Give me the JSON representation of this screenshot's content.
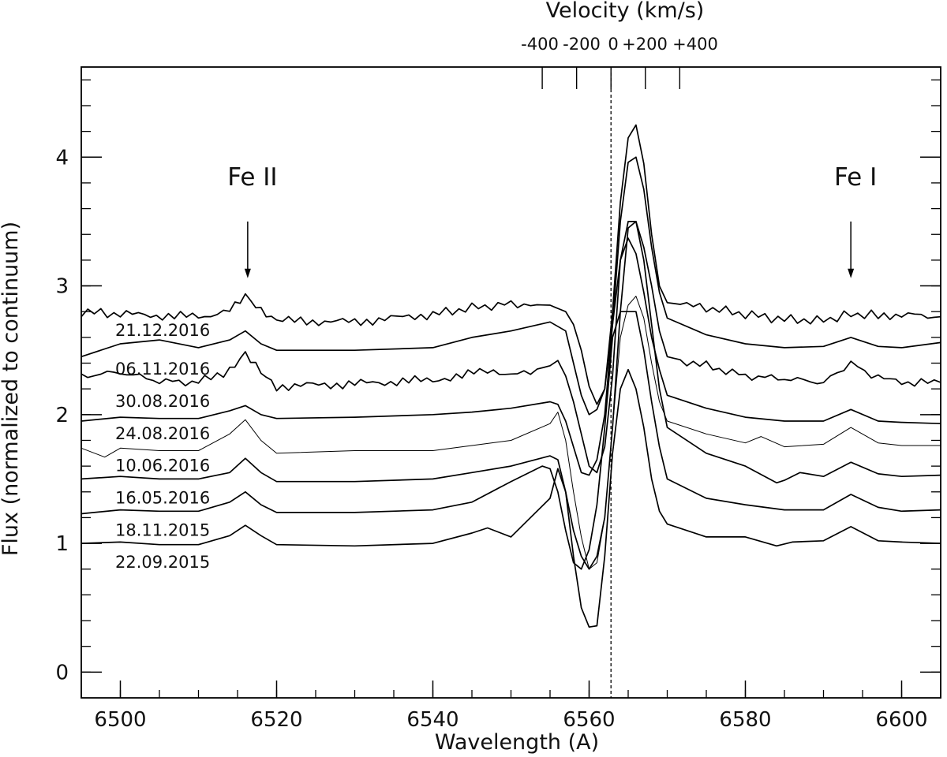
{
  "chart_data": {
    "type": "line",
    "title": "",
    "xlabel": "Wavelength (A)",
    "ylabel": "Flux (normalized to continuum)",
    "xlim": [
      6495,
      6605
    ],
    "ylim": [
      -0.2,
      4.7
    ],
    "x_ticks": [
      6500,
      6520,
      6540,
      6560,
      6580,
      6600
    ],
    "x_tick_labels": [
      "6500",
      "6520",
      "6540",
      "6560",
      "6580",
      "6600"
    ],
    "x_minor_step": 5,
    "y_ticks": [
      0,
      1,
      2,
      3,
      4
    ],
    "y_tick_labels": [
      "0",
      "1",
      "2",
      "3",
      "4"
    ],
    "y_minor_step": 0.2,
    "top_axis": {
      "title": "Velocity (km/s)",
      "rest_wavelength": 6562.8,
      "ticks": [
        {
          "label": "-400",
          "wavelength": 6554.0
        },
        {
          "label": "-200",
          "wavelength": 6558.4
        },
        {
          "label": "0",
          "wavelength": 6562.8
        },
        {
          "label": "+200",
          "wavelength": 6567.2
        },
        {
          "label": "+400",
          "wavelength": 6571.6
        }
      ]
    },
    "reference_line": {
      "wavelength": 6562.8,
      "style": "dashed"
    },
    "annotations": [
      {
        "text": "Fe II",
        "wavelength": 6516.3,
        "arrow_from": 3.5,
        "arrow_to": 3.06
      },
      {
        "text": "Fe I",
        "wavelength": 6593.5,
        "arrow_from": 3.5,
        "arrow_to": 3.06
      }
    ],
    "series": [
      {
        "name": "21.12.2016",
        "offset": 2.8,
        "noise": true,
        "thin": false,
        "x": [
          6495,
          6500,
          6510,
          6514,
          6516,
          6518,
          6520,
          6530,
          6540,
          6545,
          6550,
          6555,
          6557,
          6558,
          6559,
          6560,
          6561,
          6562,
          6563,
          6564,
          6565,
          6566,
          6567,
          6568,
          6569,
          6570,
          6575,
          6580,
          6585,
          6590,
          6593.5,
          6597,
          6600,
          6605
        ],
        "y": [
          2.8,
          2.78,
          2.76,
          2.8,
          2.91,
          2.8,
          2.73,
          2.72,
          2.78,
          2.83,
          2.86,
          2.85,
          2.8,
          2.7,
          2.5,
          2.22,
          2.08,
          2.2,
          2.8,
          3.65,
          4.15,
          4.25,
          3.95,
          3.4,
          3.0,
          2.87,
          2.83,
          2.78,
          2.74,
          2.73,
          2.78,
          2.77,
          2.78,
          2.76
        ]
      },
      {
        "name": "06.11.2016",
        "offset": 2.5,
        "noise": false,
        "thin": false,
        "x": [
          6495,
          6500,
          6505,
          6510,
          6514,
          6516,
          6518,
          6520,
          6530,
          6540,
          6545,
          6550,
          6555,
          6557,
          6558,
          6559,
          6560,
          6561,
          6562,
          6563,
          6564,
          6565,
          6566,
          6567,
          6568,
          6569,
          6570,
          6575,
          6580,
          6585,
          6590,
          6593.5,
          6597,
          6600,
          6605
        ],
        "y": [
          2.45,
          2.55,
          2.58,
          2.52,
          2.58,
          2.65,
          2.55,
          2.5,
          2.5,
          2.52,
          2.6,
          2.65,
          2.72,
          2.65,
          2.4,
          2.15,
          2.0,
          2.04,
          2.2,
          2.7,
          3.5,
          3.96,
          4.0,
          3.75,
          3.3,
          2.95,
          2.75,
          2.62,
          2.55,
          2.52,
          2.53,
          2.6,
          2.53,
          2.52,
          2.56
        ]
      },
      {
        "name": "30.08.2016",
        "offset": 2.25,
        "noise": true,
        "thin": false,
        "x": [
          6495,
          6500,
          6505,
          6510,
          6514,
          6516,
          6518,
          6520,
          6530,
          6540,
          6546,
          6547,
          6550,
          6555,
          6556,
          6557,
          6558,
          6559,
          6560,
          6561,
          6562,
          6563,
          6564,
          6565,
          6566,
          6567,
          6568,
          6569,
          6570,
          6575,
          6580,
          6585,
          6590,
          6593.5,
          6597,
          6600,
          6605
        ],
        "y": [
          2.3,
          2.33,
          2.26,
          2.25,
          2.35,
          2.49,
          2.35,
          2.22,
          2.24,
          2.27,
          2.33,
          2.36,
          2.3,
          2.38,
          2.42,
          2.3,
          2.1,
          1.85,
          1.6,
          1.55,
          1.75,
          2.3,
          3.2,
          3.5,
          3.5,
          3.3,
          3.0,
          2.65,
          2.45,
          2.38,
          2.3,
          2.28,
          2.25,
          2.4,
          2.28,
          2.25,
          2.25
        ]
      },
      {
        "name": "24.08.2016",
        "offset": 2.0,
        "noise": false,
        "thin": false,
        "x": [
          6495,
          6500,
          6505,
          6510,
          6514,
          6516,
          6518,
          6520,
          6530,
          6540,
          6545,
          6550,
          6555,
          6556,
          6557,
          6558,
          6559,
          6560,
          6561,
          6562,
          6563,
          6564,
          6565,
          6566,
          6567,
          6568,
          6569,
          6570,
          6575,
          6580,
          6585,
          6590,
          6593.5,
          6597,
          6600,
          6605
        ],
        "y": [
          1.95,
          1.98,
          1.97,
          1.97,
          2.03,
          2.07,
          2.0,
          1.97,
          1.98,
          2.0,
          2.02,
          2.05,
          2.1,
          2.08,
          1.95,
          1.75,
          1.55,
          1.53,
          1.65,
          2.0,
          2.7,
          3.2,
          3.37,
          3.25,
          2.95,
          2.6,
          2.35,
          2.15,
          2.05,
          1.98,
          1.95,
          1.95,
          2.04,
          1.95,
          1.94,
          1.93
        ]
      },
      {
        "name": "10.06.2016",
        "offset": 1.75,
        "noise": false,
        "thin": true,
        "x": [
          6495,
          6498,
          6500,
          6505,
          6510,
          6514,
          6516,
          6518,
          6520,
          6530,
          6540,
          6545,
          6550,
          6555,
          6556,
          6557,
          6558,
          6559,
          6560,
          6561,
          6562,
          6563,
          6564,
          6565,
          6566,
          6567,
          6568,
          6569,
          6570,
          6575,
          6580,
          6582,
          6585,
          6590,
          6593.5,
          6597,
          6600,
          6605
        ],
        "y": [
          1.74,
          1.67,
          1.74,
          1.72,
          1.72,
          1.85,
          1.96,
          1.8,
          1.7,
          1.72,
          1.72,
          1.76,
          1.8,
          1.93,
          2.02,
          1.8,
          1.4,
          1.05,
          0.8,
          0.85,
          1.2,
          1.9,
          2.6,
          2.85,
          2.92,
          2.75,
          2.4,
          2.1,
          1.95,
          1.85,
          1.78,
          1.83,
          1.75,
          1.77,
          1.9,
          1.78,
          1.76,
          1.76
        ]
      },
      {
        "name": "16.05.2016",
        "offset": 1.5,
        "noise": false,
        "thin": false,
        "x": [
          6495,
          6500,
          6505,
          6510,
          6514,
          6516,
          6518,
          6520,
          6530,
          6540,
          6545,
          6550,
          6555,
          6556,
          6557,
          6558,
          6559,
          6560,
          6561,
          6562,
          6563,
          6564,
          6565,
          6566,
          6567,
          6568,
          6569,
          6570,
          6575,
          6580,
          6584,
          6585,
          6587,
          6590,
          6593.5,
          6597,
          6600,
          6605
        ],
        "y": [
          1.5,
          1.52,
          1.5,
          1.5,
          1.55,
          1.66,
          1.55,
          1.48,
          1.48,
          1.5,
          1.55,
          1.6,
          1.68,
          1.65,
          1.4,
          1.1,
          0.9,
          0.8,
          0.9,
          1.2,
          1.9,
          2.8,
          3.45,
          3.5,
          3.2,
          2.7,
          2.2,
          1.9,
          1.7,
          1.6,
          1.47,
          1.49,
          1.55,
          1.52,
          1.63,
          1.54,
          1.52,
          1.53
        ]
      },
      {
        "name": "18.11.2015",
        "offset": 1.25,
        "noise": false,
        "thin": false,
        "x": [
          6495,
          6500,
          6505,
          6510,
          6514,
          6516,
          6518,
          6520,
          6530,
          6540,
          6545,
          6550,
          6554,
          6555,
          6556,
          6557,
          6558,
          6559,
          6560,
          6561,
          6562,
          6563,
          6564,
          6565,
          6566,
          6567,
          6568,
          6569,
          6570,
          6575,
          6580,
          6585,
          6590,
          6593.5,
          6597,
          6600,
          6605
        ],
        "y": [
          1.23,
          1.26,
          1.25,
          1.25,
          1.32,
          1.4,
          1.3,
          1.24,
          1.24,
          1.26,
          1.32,
          1.48,
          1.6,
          1.58,
          1.4,
          1.1,
          0.85,
          0.8,
          0.95,
          1.3,
          1.9,
          2.6,
          2.8,
          2.8,
          2.8,
          2.5,
          2.1,
          1.75,
          1.5,
          1.35,
          1.3,
          1.26,
          1.26,
          1.38,
          1.28,
          1.25,
          1.26
        ]
      },
      {
        "name": "22.09.2015",
        "offset": 1.0,
        "noise": false,
        "thin": false,
        "x": [
          6495,
          6500,
          6505,
          6510,
          6514,
          6516,
          6518,
          6520,
          6530,
          6540,
          6545,
          6547,
          6550,
          6555,
          6556,
          6557,
          6558,
          6559,
          6560,
          6561,
          6562,
          6563,
          6564,
          6565,
          6566,
          6567,
          6568,
          6569,
          6570,
          6575,
          6580,
          6584,
          6586,
          6590,
          6593.5,
          6597,
          6600,
          6605
        ],
        "y": [
          1.0,
          1.01,
          0.99,
          0.99,
          1.06,
          1.14,
          1.06,
          0.99,
          0.98,
          1.0,
          1.08,
          1.12,
          1.05,
          1.35,
          1.58,
          1.4,
          0.9,
          0.5,
          0.35,
          0.36,
          0.9,
          1.7,
          2.2,
          2.35,
          2.2,
          1.9,
          1.5,
          1.25,
          1.15,
          1.05,
          1.05,
          0.98,
          1.01,
          1.02,
          1.13,
          1.02,
          1.01,
          1.0
        ]
      }
    ]
  }
}
